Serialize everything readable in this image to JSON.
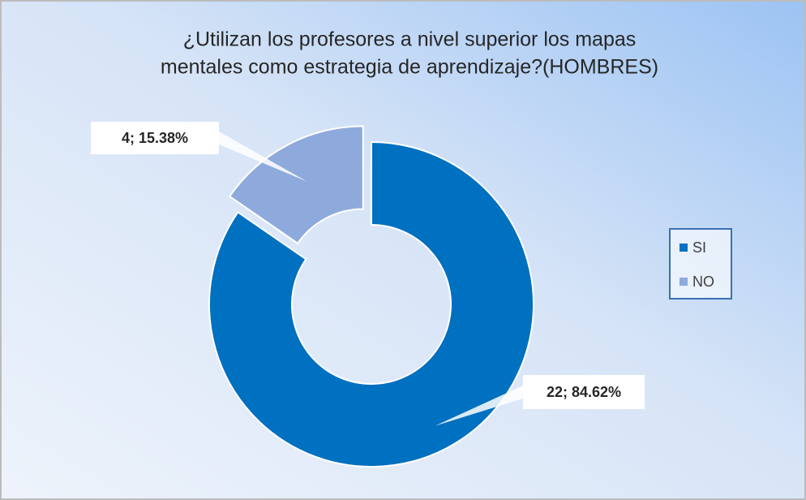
{
  "chart_data": {
    "type": "donut",
    "title": [
      "¿Utilizan los profesores a nivel superior los mapas",
      "mentales como estrategia de aprendizaje?(HOMBRES)"
    ],
    "categories": [
      "SI",
      "NO"
    ],
    "values": [
      22,
      4
    ],
    "value_labels": [
      "22; 84.62%",
      "4; 15.38%"
    ],
    "colors": [
      "#0070c0",
      "#8eaadc"
    ],
    "legend": "right"
  }
}
